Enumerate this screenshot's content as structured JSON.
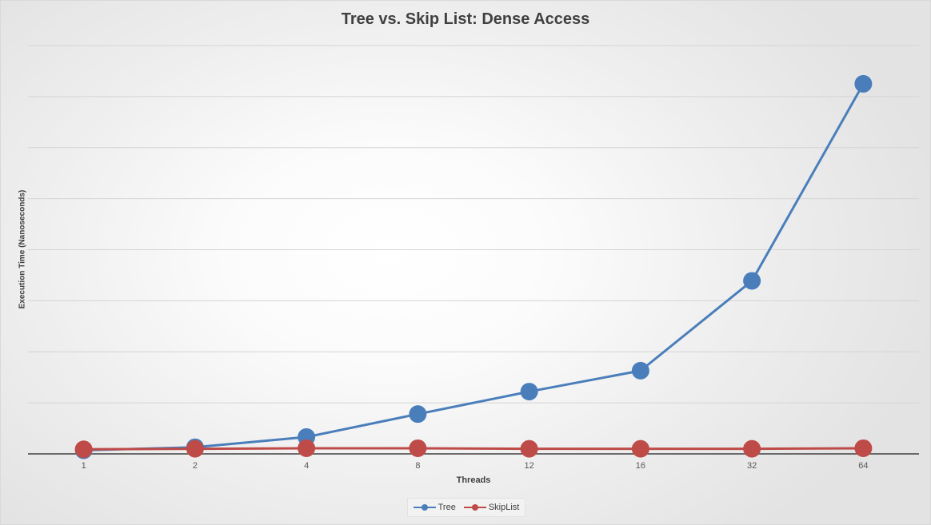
{
  "chart_data": {
    "type": "line",
    "title": "Tree vs. Skip List: Dense Access",
    "xlabel": "Threads",
    "ylabel": "Execution Time (Nanoseconds)",
    "categories": [
      "1",
      "2",
      "4",
      "8",
      "12",
      "16",
      "32",
      "64"
    ],
    "ylim": [
      0,
      8
    ],
    "y_tick_labels_shown": false,
    "grid": true,
    "legend": "bottom",
    "series": [
      {
        "name": "Tree",
        "color": "#4a7ebb",
        "values": [
          0.07,
          0.13,
          0.33,
          0.78,
          1.22,
          1.63,
          3.39,
          7.25
        ]
      },
      {
        "name": "SkipList",
        "color": "#be4b48",
        "values": [
          0.09,
          0.1,
          0.11,
          0.11,
          0.1,
          0.1,
          0.1,
          0.11
        ]
      }
    ]
  }
}
